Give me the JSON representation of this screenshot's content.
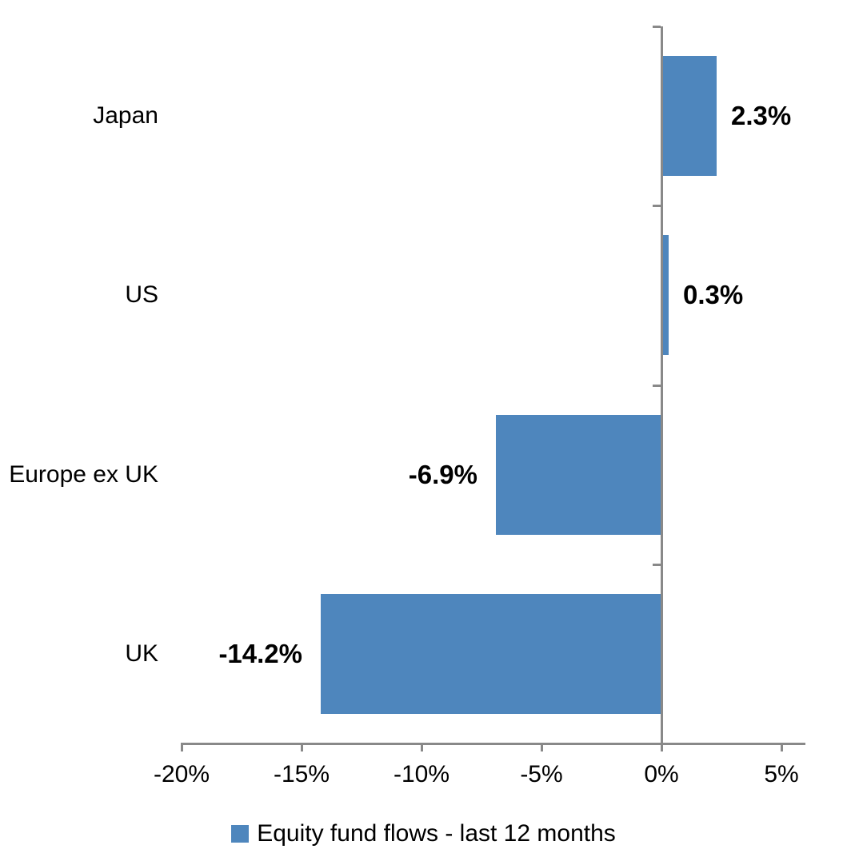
{
  "chart_data": {
    "type": "bar",
    "orientation": "horizontal",
    "title": "",
    "xlabel": "",
    "ylabel": "",
    "categories": [
      "Japan",
      "US",
      "Europe ex UK",
      "UK"
    ],
    "values": [
      2.3,
      0.3,
      -6.9,
      -14.2
    ],
    "value_labels": [
      "2.3%",
      "0.3%",
      "-6.9%",
      "-14.2%"
    ],
    "series_name": "Equity fund flows - last 12 months",
    "xlim": [
      -20,
      6
    ],
    "x_ticks": [
      -20,
      -15,
      -10,
      -5,
      0,
      5
    ],
    "x_tick_labels": [
      "-20%",
      "-15%",
      "-10%",
      "-5%",
      "0%",
      "5%"
    ],
    "grid": false,
    "legend_position": "bottom",
    "bar_color": "#4E86BD",
    "axis_color": "#898989",
    "text_color": "#000000"
  },
  "legend": {
    "label": "Equity fund flows - last 12 months",
    "swatch_color": "#4E86BD"
  }
}
